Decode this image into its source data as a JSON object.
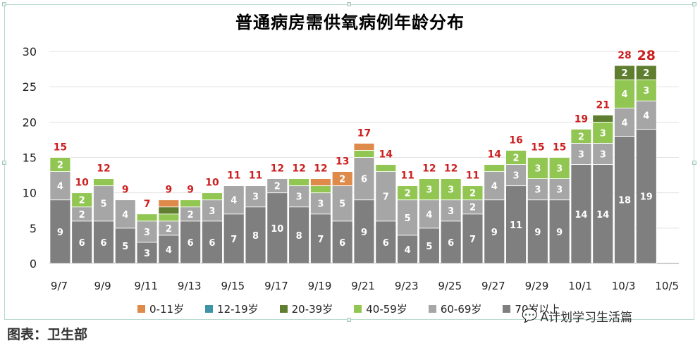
{
  "title": "普通病房需供氧病例年龄分布",
  "source_text": "图表：卫生部",
  "watermark_text": "A计划学习生活篇",
  "chart_data": {
    "type": "bar",
    "stacked": true,
    "title": "普通病房需供氧病例年龄分布",
    "ylim": [
      0,
      30
    ],
    "yticks": [
      0,
      5,
      10,
      15,
      20,
      25,
      30
    ],
    "grid": true,
    "legend_position": "bottom",
    "categories": [
      "9/7",
      "9/8",
      "9/9",
      "9/10",
      "9/11",
      "9/12",
      "9/13",
      "9/14",
      "9/15",
      "9/16",
      "9/17",
      "9/18",
      "9/19",
      "9/20",
      "9/21",
      "9/22",
      "9/23",
      "9/24",
      "9/25",
      "9/26",
      "9/27",
      "9/28",
      "9/29",
      "9/30",
      "10/1",
      "10/2",
      "10/3",
      "10/4"
    ],
    "x_tick_labels": [
      "9/7",
      "9/9",
      "9/11",
      "9/13",
      "9/15",
      "9/17",
      "9/19",
      "9/21",
      "9/23",
      "9/25",
      "9/27",
      "9/29",
      "10/1",
      "10/3",
      "10/5"
    ],
    "series": [
      {
        "name": "70岁以上",
        "color": "#807f7f",
        "values": [
          9,
          6,
          6,
          5,
          3,
          4,
          6,
          6,
          7,
          8,
          10,
          8,
          7,
          6,
          9,
          6,
          4,
          5,
          6,
          7,
          9,
          11,
          9,
          9,
          14,
          14,
          18,
          19
        ]
      },
      {
        "name": "60-69岁",
        "color": "#a6a6a6",
        "values": [
          4,
          2,
          5,
          4,
          3,
          2,
          2,
          3,
          4,
          3,
          2,
          3,
          3,
          5,
          6,
          7,
          5,
          4,
          3,
          2,
          4,
          3,
          3,
          3,
          3,
          3,
          4,
          4
        ]
      },
      {
        "name": "40-59岁",
        "color": "#92c652",
        "values": [
          2,
          2,
          1,
          0,
          1,
          1,
          1,
          1,
          0,
          0,
          0,
          1,
          1,
          0,
          1,
          1,
          2,
          3,
          3,
          2,
          1,
          2,
          3,
          3,
          2,
          3,
          4,
          3
        ]
      },
      {
        "name": "20-39岁",
        "color": "#5f7e30",
        "values": [
          0,
          0,
          0,
          0,
          0,
          1,
          0,
          0,
          0,
          0,
          0,
          0,
          0,
          0,
          0,
          0,
          0,
          0,
          0,
          0,
          0,
          0,
          0,
          0,
          0,
          1,
          2,
          2
        ]
      },
      {
        "name": "12-19岁",
        "color": "#3f93a6",
        "values": [
          0,
          0,
          0,
          0,
          0,
          0,
          0,
          0,
          0,
          0,
          0,
          0,
          0,
          0,
          0,
          0,
          0,
          0,
          0,
          0,
          0,
          0,
          0,
          0,
          0,
          0,
          0,
          0
        ]
      },
      {
        "name": "0-11岁",
        "color": "#de8a4b",
        "values": [
          0,
          0,
          0,
          0,
          0,
          1,
          0,
          0,
          0,
          0,
          0,
          0,
          1,
          2,
          1,
          0,
          0,
          0,
          0,
          0,
          0,
          0,
          0,
          0,
          0,
          0,
          0,
          0
        ]
      }
    ],
    "totals": [
      15,
      10,
      12,
      9,
      7,
      9,
      9,
      10,
      11,
      11,
      12,
      12,
      12,
      13,
      17,
      14,
      11,
      12,
      12,
      11,
      14,
      16,
      15,
      15,
      19,
      21,
      28,
      28
    ],
    "total_label_color": "#cc1f1f",
    "legend_order": [
      "0-11岁",
      "12-19岁",
      "20-39岁",
      "40-59岁",
      "60-69岁",
      "70岁以上"
    ]
  }
}
